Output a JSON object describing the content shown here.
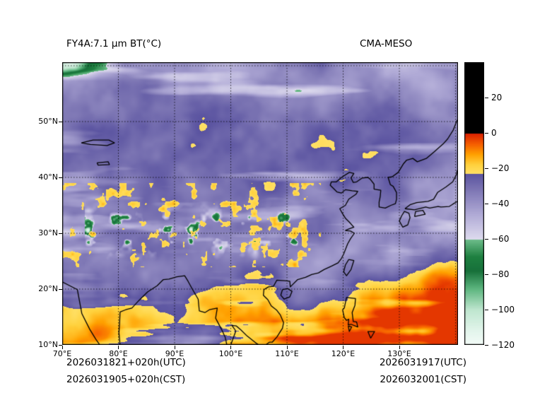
{
  "figure": {
    "title_left": "FY4A:7.1 μm BT(°C)",
    "title_right": "CMA-MESO",
    "footer": {
      "left_line1": "2026031821+020h(UTC)",
      "left_line2": "2026031905+020h(CST)",
      "right_line1": "2026031917(UTC)",
      "right_line2": "2026032001(CST)"
    }
  },
  "chart_data": {
    "type": "heatmap",
    "title": "FY4A:7.1 μm BT(°C)",
    "model": "CMA-MESO",
    "variable": "FY4A 7.1 micron water-vapor channel brightness temperature",
    "units": "°C",
    "x_axis": {
      "label": "longitude",
      "ticks": [
        {
          "value": 70,
          "label": "70°E"
        },
        {
          "value": 80,
          "label": "80°E"
        },
        {
          "value": 90,
          "label": "90°E"
        },
        {
          "value": 100,
          "label": "100°E"
        },
        {
          "value": 110,
          "label": "110°E"
        },
        {
          "value": 120,
          "label": "120°E"
        },
        {
          "value": 130,
          "label": "130°E"
        }
      ],
      "grid_lons": [
        80,
        90,
        100,
        110,
        120,
        130,
        140
      ],
      "range": [
        70,
        140.4
      ]
    },
    "y_axis": {
      "label": "latitude",
      "ticks": [
        {
          "value": 10,
          "label": "10°N"
        },
        {
          "value": 20,
          "label": "20°N"
        },
        {
          "value": 30,
          "label": "30°N"
        },
        {
          "value": 40,
          "label": "40°N"
        },
        {
          "value": 50,
          "label": "50°N"
        }
      ],
      "grid_lats": [
        20,
        30,
        40,
        50,
        60
      ],
      "range": [
        10,
        60.6
      ]
    },
    "grid_style": "dotted black 10-degree graticule",
    "colorbar": {
      "range": [
        -120,
        40
      ],
      "ticks": [
        {
          "value": 20,
          "label": "20"
        },
        {
          "value": 0,
          "label": "0"
        },
        {
          "value": -20,
          "label": "−20"
        },
        {
          "value": -40,
          "label": "−40"
        },
        {
          "value": -60,
          "label": "−60"
        },
        {
          "value": -80,
          "label": "−80"
        },
        {
          "value": -100,
          "label": "−100"
        },
        {
          "value": -120,
          "label": "−120"
        }
      ],
      "stops": [
        {
          "v": -120,
          "c": "#f4fbf8"
        },
        {
          "v": -112,
          "c": "#e3f5ec"
        },
        {
          "v": -100,
          "c": "#bfe6cf"
        },
        {
          "v": -88,
          "c": "#5cb57e"
        },
        {
          "v": -78,
          "c": "#17703a"
        },
        {
          "v": -70,
          "c": "#1e8040"
        },
        {
          "v": -60.01,
          "c": "#6fbe8c"
        },
        {
          "v": -60,
          "c": "#dedbee"
        },
        {
          "v": -46,
          "c": "#b0aad6"
        },
        {
          "v": -32,
          "c": "#7d76b4"
        },
        {
          "v": -23.01,
          "c": "#5a53a0"
        },
        {
          "v": -23,
          "c": "#ffe066"
        },
        {
          "v": -18,
          "c": "#ffd23e"
        },
        {
          "v": -12,
          "c": "#ffa000"
        },
        {
          "v": -6,
          "c": "#f55b00"
        },
        {
          "v": -0.01,
          "c": "#d81e00"
        },
        {
          "v": 0,
          "c": "#000000"
        },
        {
          "v": 40,
          "c": "#000000"
        }
      ]
    },
    "field_summary": {
      "background": "slate-purple mid-level moisture, BT mostly -30 to -45 °C over the domain interior",
      "cirrus_streaks": "pale lavender wisps (-45 to -58 °C) of jet-stream cirrus across northern and central latitudes",
      "warm_dry": "yellow/orange dry air (-5 to -22 °C) across the tropics south of ~25°N and in a SW–NE band over the western Pacific reaching ~30°N at the east edge",
      "cold_cloud_tops": "green convective cloud tops (-60 to -90 °C) scattered along 28–33°N between ~75°E and 112°E and near the top-left corner",
      "coastlines": "black coastal outlines of India, Indochina, China, Korea, Japan, Taiwan, Hainan, Luzon and Lake Balkhash"
    }
  }
}
